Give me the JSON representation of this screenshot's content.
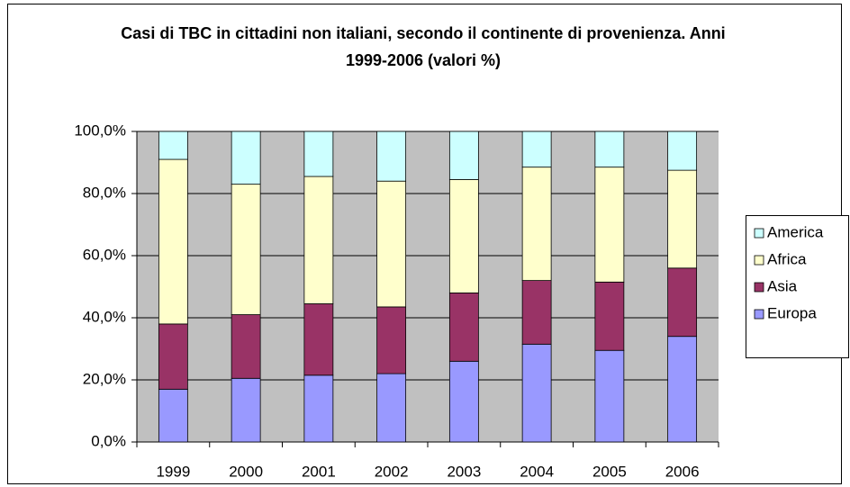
{
  "chart_data": {
    "type": "stacked_bar",
    "title": "Casi di TBC in cittadini non italiani, secondo il continente di provenienza. Anni 1999-2006 (valori %)",
    "categories": [
      "1999",
      "2000",
      "2001",
      "2002",
      "2003",
      "2004",
      "2005",
      "2006"
    ],
    "series": [
      {
        "name": "Europa",
        "color": "#9999ff",
        "values": [
          17,
          20.5,
          21.5,
          22,
          26,
          31.5,
          29.5,
          34
        ]
      },
      {
        "name": "Asia",
        "color": "#993366",
        "values": [
          21,
          20.5,
          23,
          21.5,
          22,
          20.5,
          22,
          22
        ]
      },
      {
        "name": "Africa",
        "color": "#ffffcc",
        "values": [
          53,
          42,
          41,
          40.5,
          36.5,
          36.5,
          37,
          31.5
        ]
      },
      {
        "name": "America",
        "color": "#ccffff",
        "values": [
          9,
          17,
          14.5,
          16,
          15.5,
          11.5,
          11.5,
          12.5
        ]
      }
    ],
    "ylim": [
      0,
      100
    ],
    "yticks": [
      {
        "value": 0,
        "label": "0,0%"
      },
      {
        "value": 20,
        "label": "20,0%"
      },
      {
        "value": 40,
        "label": "40,0%"
      },
      {
        "value": 60,
        "label": "60,0%"
      },
      {
        "value": 80,
        "label": "80,0%"
      },
      {
        "value": 100,
        "label": "100,0%"
      }
    ],
    "grid": true,
    "legend": "right"
  }
}
